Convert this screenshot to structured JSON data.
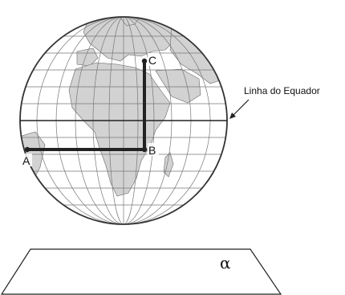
{
  "figure": {
    "points": {
      "a": "A",
      "b": "B",
      "c": "C"
    },
    "equator_label": "Linha do Equador",
    "plane_label": "α"
  },
  "colors": {
    "segment": "#222222",
    "globe_outline": "#333333",
    "grid": "#777777",
    "land": "#d2d2d2"
  }
}
